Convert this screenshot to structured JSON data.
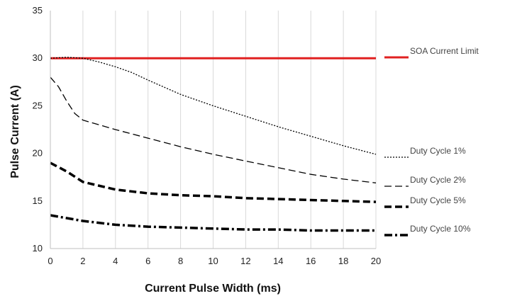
{
  "chart_data": {
    "type": "line",
    "title": "",
    "xlabel": "Current Pulse Width (ms)",
    "ylabel": "Pulse Current (A)",
    "xlim": [
      0,
      20
    ],
    "ylim": [
      10,
      35
    ],
    "x_ticks": [
      "0",
      "2",
      "4",
      "6",
      "8",
      "10",
      "12",
      "14",
      "16",
      "18",
      "20"
    ],
    "y_ticks": [
      "10",
      "15",
      "20",
      "25",
      "30",
      "35"
    ],
    "grid": "vertical",
    "legend_position": "right",
    "series": [
      {
        "name": "SOA Current Limit",
        "color": "#e02020",
        "style": "solid",
        "points": [
          [
            0,
            30
          ],
          [
            20,
            30
          ]
        ]
      },
      {
        "name": "Duty Cycle 1%",
        "color": "#000000",
        "style": "dotted",
        "points": [
          [
            0,
            30
          ],
          [
            1,
            30.1
          ],
          [
            2,
            30
          ],
          [
            3,
            29.6
          ],
          [
            4,
            29.1
          ],
          [
            5,
            28.5
          ],
          [
            6,
            27.7
          ],
          [
            8,
            26.2
          ],
          [
            10,
            25
          ],
          [
            12,
            23.9
          ],
          [
            14,
            22.8
          ],
          [
            16,
            21.8
          ],
          [
            18,
            20.8
          ],
          [
            20,
            19.9
          ]
        ]
      },
      {
        "name": "Duty Cycle 2%",
        "color": "#000000",
        "style": "dashed",
        "points": [
          [
            0,
            28
          ],
          [
            0.5,
            27
          ],
          [
            1,
            25.5
          ],
          [
            1.5,
            24.2
          ],
          [
            2,
            23.5
          ],
          [
            4,
            22.5
          ],
          [
            6,
            21.6
          ],
          [
            8,
            20.7
          ],
          [
            10,
            19.9
          ],
          [
            12,
            19.2
          ],
          [
            14,
            18.5
          ],
          [
            16,
            17.8
          ],
          [
            18,
            17.3
          ],
          [
            20,
            16.9
          ]
        ]
      },
      {
        "name": "Duty Cycle 5%",
        "color": "#000000",
        "style": "heavy-dashed",
        "points": [
          [
            0,
            19
          ],
          [
            1,
            18.1
          ],
          [
            2,
            17
          ],
          [
            4,
            16.2
          ],
          [
            6,
            15.8
          ],
          [
            8,
            15.6
          ],
          [
            10,
            15.5
          ],
          [
            12,
            15.3
          ],
          [
            14,
            15.2
          ],
          [
            16,
            15.1
          ],
          [
            18,
            15
          ],
          [
            20,
            14.9
          ]
        ]
      },
      {
        "name": "Duty Cycle 10%",
        "color": "#000000",
        "style": "dash-dot",
        "points": [
          [
            0,
            13.5
          ],
          [
            1,
            13.2
          ],
          [
            2,
            12.9
          ],
          [
            4,
            12.5
          ],
          [
            6,
            12.3
          ],
          [
            8,
            12.2
          ],
          [
            10,
            12.1
          ],
          [
            12,
            12
          ],
          [
            14,
            12
          ],
          [
            16,
            11.9
          ],
          [
            18,
            11.9
          ],
          [
            20,
            11.9
          ]
        ]
      }
    ]
  }
}
